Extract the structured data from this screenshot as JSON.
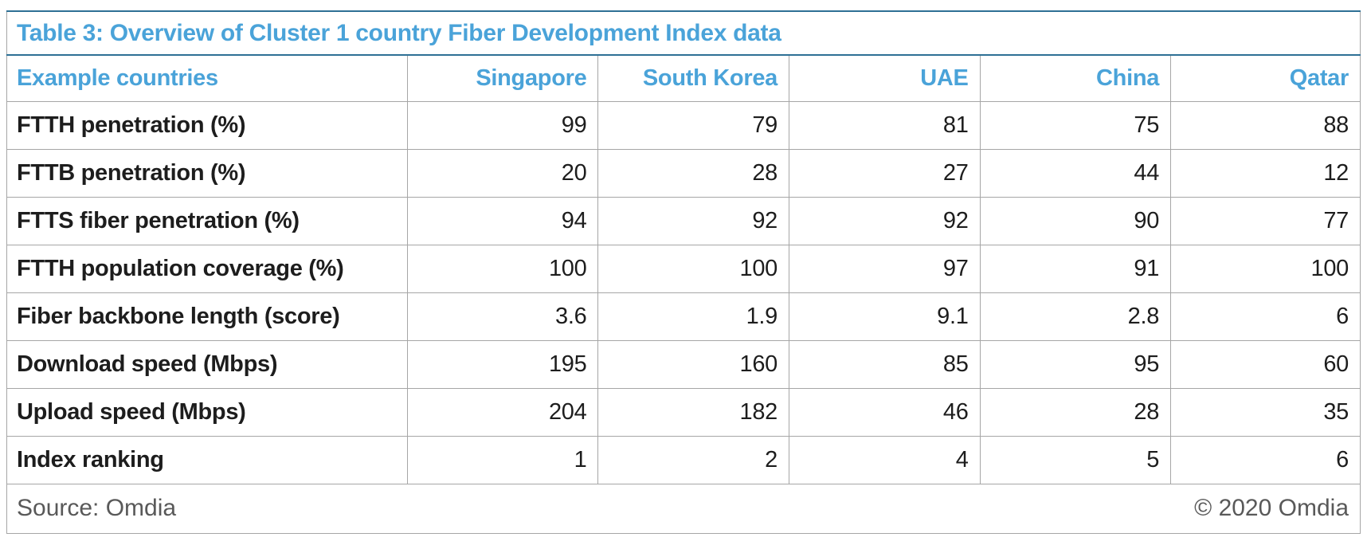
{
  "chart_data": {
    "type": "table",
    "title": "Table 3: Overview of Cluster 1 country Fiber Development Index data",
    "columns": [
      "Example countries",
      "Singapore",
      "South Korea",
      "UAE",
      "China",
      "Qatar"
    ],
    "rows": [
      {
        "label": "FTTH penetration (%)",
        "values": [
          99,
          79,
          81,
          75,
          88
        ]
      },
      {
        "label": "FTTB penetration (%)",
        "values": [
          20,
          28,
          27,
          44,
          12
        ]
      },
      {
        "label": "FTTS fiber penetration (%)",
        "values": [
          94,
          92,
          92,
          90,
          77
        ]
      },
      {
        "label": "FTTH population coverage (%)",
        "values": [
          100,
          100,
          97,
          91,
          100
        ]
      },
      {
        "label": "Fiber backbone length (score)",
        "values": [
          3.6,
          1.9,
          9.1,
          2.8,
          6
        ]
      },
      {
        "label": "Download speed (Mbps)",
        "values": [
          195,
          160,
          85,
          95,
          60
        ]
      },
      {
        "label": "Upload speed (Mbps)",
        "values": [
          204,
          182,
          46,
          28,
          35
        ]
      },
      {
        "label": "Index ranking",
        "values": [
          1,
          2,
          4,
          5,
          6
        ]
      }
    ],
    "footer": {
      "source": "Source: Omdia",
      "copyright": "© 2020 Omdia"
    },
    "layout": {
      "value_alignment": "right",
      "label_column_width_pct": 29.6,
      "value_column_width_pct": 14.08,
      "grid": "horizontal-and-vertical",
      "legend_position": "none"
    }
  },
  "colors": {
    "accent_blue": "#4aa3d9",
    "teal_border": "#2e7095",
    "grid_border": "#a6a6a6",
    "text_dark": "#1d1d1d",
    "footer_gray": "#595959"
  }
}
